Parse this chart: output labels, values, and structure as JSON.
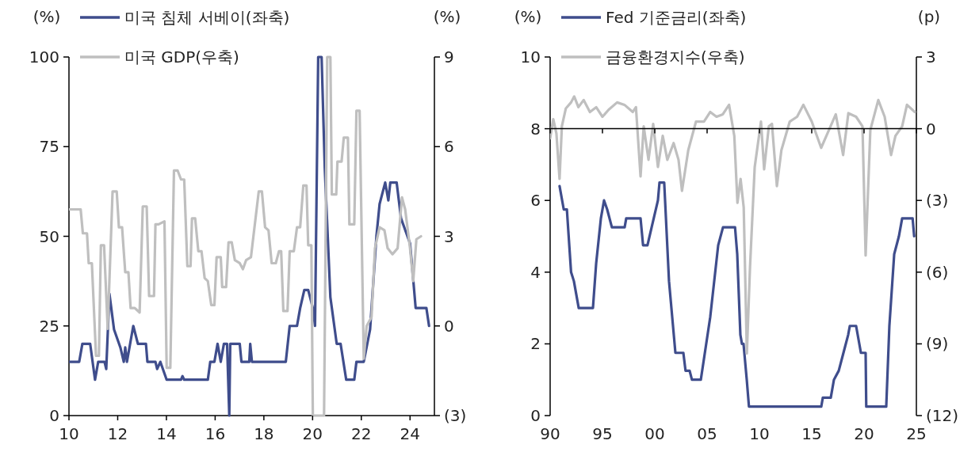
{
  "chart_data": [
    {
      "type": "line",
      "ylabel": "(%)",
      "y2label": "(%)",
      "legend": "top left",
      "grid": false,
      "xlim": [
        2010,
        2025
      ],
      "xticks": [
        {
          "value": 2010,
          "label": "10"
        },
        {
          "value": 2012,
          "label": "12"
        },
        {
          "value": 2014,
          "label": "14"
        },
        {
          "value": 2016,
          "label": "16"
        },
        {
          "value": 2018,
          "label": "18"
        },
        {
          "value": 2020,
          "label": "20"
        },
        {
          "value": 2022,
          "label": "22"
        },
        {
          "value": 2024,
          "label": "24"
        }
      ],
      "ylim": [
        0,
        100
      ],
      "yticks": [
        0,
        25,
        50,
        75,
        100
      ],
      "y2lim": [
        -3,
        9
      ],
      "y2ticks": [
        {
          "value": -3,
          "label": "(3)"
        },
        0,
        3,
        6,
        9
      ],
      "series": [
        {
          "name": "미국 침체 서베이(좌축)",
          "color": "#3f4d8c",
          "x": [
            2010.0,
            2010.42,
            2010.55,
            2010.87,
            2011.07,
            2011.2,
            2011.46,
            2011.53,
            2011.66,
            2011.85,
            2012.11,
            2012.25,
            2012.31,
            2012.38,
            2012.64,
            2012.83,
            2013.16,
            2013.22,
            2013.55,
            2013.62,
            2013.75,
            2014.01,
            2014.6,
            2014.66,
            2014.73,
            2015.7,
            2015.8,
            2015.97,
            2016.1,
            2016.23,
            2016.36,
            2016.49,
            2016.58,
            2016.62,
            2017.01,
            2017.08,
            2017.4,
            2017.44,
            2017.51,
            2018.9,
            2019.06,
            2019.36,
            2019.49,
            2019.66,
            2019.82,
            2020.01,
            2020.1,
            2020.23,
            2020.37,
            2020.5,
            2020.73,
            2020.99,
            2021.15,
            2021.38,
            2021.71,
            2021.8,
            2022.1,
            2022.36,
            2022.62,
            2022.75,
            2022.98,
            2023.11,
            2023.19,
            2023.45,
            2023.63,
            2024.0,
            2024.13,
            2024.23,
            2024.67,
            2024.78
          ],
          "values": [
            15,
            15,
            20,
            20,
            10,
            15,
            15,
            13,
            34,
            24,
            19,
            15,
            19,
            15,
            25,
            20,
            20,
            15,
            15,
            13,
            15,
            10,
            10,
            11,
            10,
            10,
            15,
            15,
            20,
            15,
            20,
            20,
            0,
            20,
            20,
            15,
            15,
            20,
            15,
            15,
            25,
            25,
            30,
            35,
            35,
            30,
            25,
            100,
            100,
            69,
            33,
            20,
            20,
            10,
            10,
            15,
            15,
            24,
            50,
            59,
            65,
            60,
            65,
            65,
            55,
            48,
            38,
            30,
            30,
            25
          ]
        },
        {
          "name": "미국 GDP(우축)",
          "color": "#bfbfbf",
          "axis": "y2",
          "x": [
            2010.0,
            2010.48,
            2010.57,
            2010.74,
            2010.81,
            2010.94,
            2011.11,
            2011.23,
            2011.31,
            2011.44,
            2011.59,
            2011.79,
            2011.96,
            2012.05,
            2012.18,
            2012.31,
            2012.44,
            2012.53,
            2012.7,
            2012.9,
            2013.03,
            2013.19,
            2013.29,
            2013.49,
            2013.55,
            2013.68,
            2013.92,
            2014.01,
            2014.16,
            2014.31,
            2014.46,
            2014.6,
            2014.73,
            2014.86,
            2014.99,
            2015.05,
            2015.18,
            2015.31,
            2015.44,
            2015.57,
            2015.7,
            2015.84,
            2015.97,
            2016.06,
            2016.23,
            2016.29,
            2016.45,
            2016.55,
            2016.68,
            2016.81,
            2017.01,
            2017.14,
            2017.27,
            2017.47,
            2017.6,
            2017.79,
            2017.92,
            2018.05,
            2018.19,
            2018.32,
            2018.49,
            2018.62,
            2018.71,
            2018.8,
            2018.97,
            2019.06,
            2019.23,
            2019.36,
            2019.49,
            2019.62,
            2019.75,
            2019.82,
            2019.95,
            2020.01,
            2020.47,
            2020.6,
            2020.73,
            2020.79,
            2020.97,
            2021.02,
            2021.19,
            2021.28,
            2021.45,
            2021.51,
            2021.71,
            2021.8,
            2021.93,
            2022.1,
            2022.22,
            2022.42,
            2022.56,
            2022.75,
            2022.95,
            2023.08,
            2023.28,
            2023.49,
            2023.67,
            2023.8,
            2024.0,
            2024.13,
            2024.26,
            2024.45
          ],
          "values": [
            3.9,
            3.9,
            3.1,
            3.1,
            2.1,
            2.1,
            -1.0,
            -1.0,
            2.7,
            2.7,
            -0.1,
            4.5,
            4.5,
            3.3,
            3.3,
            1.8,
            1.8,
            0.6,
            0.6,
            0.45,
            4.0,
            4.0,
            1.0,
            1.0,
            3.4,
            3.4,
            3.5,
            -1.4,
            -1.4,
            5.2,
            5.2,
            4.9,
            4.9,
            2.0,
            2.0,
            3.6,
            3.6,
            2.5,
            2.5,
            1.6,
            1.5,
            0.7,
            0.7,
            2.3,
            2.3,
            1.3,
            1.3,
            2.8,
            2.8,
            2.2,
            2.1,
            1.9,
            2.2,
            2.3,
            3.2,
            4.5,
            4.5,
            3.3,
            3.2,
            2.1,
            2.1,
            2.5,
            2.5,
            0.5,
            0.5,
            2.5,
            2.5,
            3.3,
            3.3,
            4.7,
            4.7,
            2.7,
            2.7,
            -3,
            -3,
            9,
            9,
            4.4,
            4.4,
            5.5,
            5.5,
            6.3,
            6.3,
            3.4,
            3.4,
            7.2,
            7.2,
            -1.1,
            0,
            0.3,
            2.6,
            3.3,
            3.2,
            2.6,
            2.4,
            2.6,
            4.3,
            3.9,
            2.6,
            1.5,
            2.9,
            3.0
          ]
        }
      ]
    },
    {
      "type": "line",
      "ylabel": "(%)",
      "y2label": "(p)",
      "legend": "top left",
      "grid": false,
      "xlim": [
        1990,
        2025
      ],
      "xticks": [
        {
          "value": 1990,
          "label": "90"
        },
        {
          "value": 1995,
          "label": "95"
        },
        {
          "value": 2000,
          "label": "00"
        },
        {
          "value": 2005,
          "label": "05"
        },
        {
          "value": 2010,
          "label": "10"
        },
        {
          "value": 2015,
          "label": "15"
        },
        {
          "value": 2020,
          "label": "20"
        },
        {
          "value": 2025,
          "label": "25"
        }
      ],
      "ylim": [
        0,
        10
      ],
      "yticks": [
        0,
        2,
        4,
        6,
        8,
        10
      ],
      "y2lim": [
        -12,
        3
      ],
      "y2ticks": [
        {
          "value": -12,
          "label": "(12)"
        },
        {
          "value": -9,
          "label": "(9)"
        },
        {
          "value": -6,
          "label": "(6)"
        },
        {
          "value": -3,
          "label": "(3)"
        },
        0,
        3
      ],
      "ref_lines": [
        {
          "axis": "y2",
          "value": 0,
          "color": "#000000"
        }
      ],
      "series": [
        {
          "name": "Fed 기준금리(좌축)",
          "color": "#3f4d8c",
          "x": [
            1990.9,
            1991.3,
            1991.6,
            1992.0,
            1992.27,
            1992.73,
            1994.09,
            1994.4,
            1994.85,
            1995.15,
            1995.45,
            1995.9,
            1997.12,
            1997.27,
            1998.64,
            1998.88,
            1999.3,
            1999.7,
            2000.3,
            2000.45,
            2000.9,
            2001.36,
            2001.97,
            2002.73,
            2002.94,
            2003.33,
            2003.55,
            2004.4,
            2005.3,
            2006.06,
            2006.52,
            2007.67,
            2007.88,
            2008.18,
            2008.33,
            2008.48,
            2008.79,
            2009.0,
            2015.91,
            2016.06,
            2016.82,
            2017.12,
            2017.58,
            2018.03,
            2018.48,
            2018.64,
            2019.24,
            2019.7,
            2020.15,
            2020.21,
            2022.12,
            2022.42,
            2022.88,
            2023.33,
            2023.64,
            2024.64,
            2024.79
          ],
          "values": [
            6.4,
            5.75,
            5.75,
            4.0,
            3.75,
            3.0,
            3.0,
            4.25,
            5.5,
            6.0,
            5.75,
            5.25,
            5.25,
            5.5,
            5.5,
            4.75,
            4.75,
            5.25,
            6.0,
            6.5,
            6.5,
            3.75,
            1.75,
            1.75,
            1.25,
            1.25,
            1.0,
            1.0,
            2.75,
            4.75,
            5.25,
            5.25,
            4.5,
            2.25,
            2.0,
            2.0,
            1.0,
            0.25,
            0.25,
            0.5,
            0.5,
            1.0,
            1.25,
            1.75,
            2.25,
            2.5,
            2.5,
            1.75,
            1.75,
            0.25,
            0.25,
            2.5,
            4.5,
            5.0,
            5.5,
            5.5,
            5.0
          ]
        },
        {
          "name": "금융환경지수(우축)",
          "color": "#bfbfbf",
          "axis": "y2",
          "x": [
            1990.0,
            1990.3,
            1990.6,
            1990.9,
            1991.12,
            1991.5,
            1992.0,
            1992.3,
            1992.7,
            1993.2,
            1993.8,
            1994.4,
            1995.0,
            1995.6,
            1996.4,
            1997.1,
            1997.9,
            1998.2,
            1998.64,
            1998.94,
            1999.4,
            1999.85,
            2000.3,
            2000.76,
            2001.2,
            2001.8,
            2002.27,
            2002.6,
            2003.2,
            2003.94,
            2004.7,
            2005.3,
            2005.9,
            2006.5,
            2007.1,
            2007.6,
            2007.9,
            2008.2,
            2008.5,
            2008.8,
            2009.1,
            2009.55,
            2010.15,
            2010.45,
            2010.9,
            2011.2,
            2011.67,
            2012.1,
            2012.9,
            2013.6,
            2014.2,
            2015.0,
            2015.9,
            2016.5,
            2017.3,
            2018.0,
            2018.5,
            2019.24,
            2019.85,
            2020.15,
            2020.6,
            2021.36,
            2021.97,
            2022.58,
            2023.0,
            2023.64,
            2024.1,
            2024.85
          ],
          "values": [
            -0.4,
            0.4,
            -0.2,
            -2.1,
            0.1,
            0.85,
            1.1,
            1.35,
            0.9,
            1.2,
            0.7,
            0.9,
            0.5,
            0.8,
            1.1,
            1.0,
            0.7,
            0.9,
            -2.0,
            0.1,
            -1.3,
            0.2,
            -1.6,
            -0.3,
            -1.3,
            -0.6,
            -1.3,
            -2.6,
            -0.9,
            0.3,
            0.3,
            0.7,
            0.5,
            0.6,
            1.0,
            -0.3,
            -3.1,
            -2.1,
            -3.3,
            -9.4,
            -5.8,
            -1.6,
            0.3,
            -1.7,
            0.1,
            0.2,
            -2.4,
            -0.9,
            0.3,
            0.5,
            1.0,
            0.3,
            -0.8,
            -0.2,
            0.6,
            -1.1,
            0.65,
            0.5,
            0.1,
            -5.3,
            -0.05,
            1.2,
            0.5,
            -1.1,
            -0.3,
            0.1,
            1.0,
            0.7
          ]
        }
      ]
    }
  ]
}
